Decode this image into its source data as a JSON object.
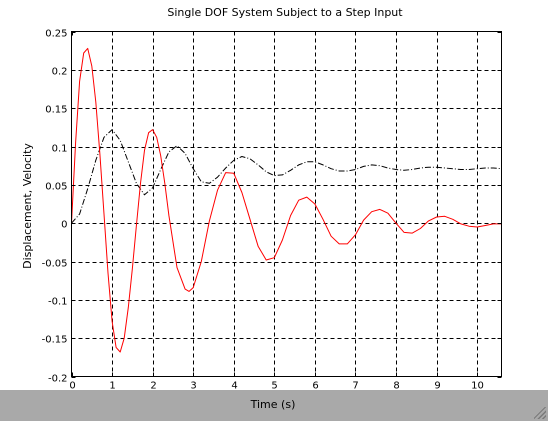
{
  "chart_data": {
    "type": "line",
    "title": "Single DOF System Subject to a Step Input",
    "xlabel": "Time (s)",
    "ylabel": "Displacement, Velocity",
    "xlim": [
      0,
      10.6
    ],
    "ylim": [
      -0.2,
      0.25
    ],
    "xticks": [
      0,
      1,
      2,
      3,
      4,
      5,
      6,
      7,
      8,
      9,
      10
    ],
    "yticks": [
      -0.2,
      -0.15,
      -0.1,
      -0.05,
      0,
      0.05,
      0.1,
      0.15,
      0.2,
      0.25
    ],
    "xticklabels": [
      "0",
      "1",
      "2",
      "3",
      "4",
      "5",
      "6",
      "7",
      "8",
      "9",
      "10"
    ],
    "yticklabels": [
      "-0.2",
      "-0.15",
      "-0.1",
      "-0.05",
      "0",
      "0.05",
      "0.1",
      "0.15",
      "0.2",
      "0.25"
    ],
    "grid": true,
    "series": [
      {
        "color": "#000000",
        "dash": "dashdot",
        "x": [
          0,
          0.2,
          0.4,
          0.6,
          0.8,
          1.0,
          1.2,
          1.4,
          1.6,
          1.8,
          2.0,
          2.2,
          2.4,
          2.6,
          2.8,
          3.0,
          3.2,
          3.4,
          3.6,
          3.8,
          4.0,
          4.2,
          4.4,
          4.6,
          4.8,
          5.0,
          5.2,
          5.4,
          5.6,
          5.8,
          6.0,
          6.2,
          6.4,
          6.6,
          6.8,
          7.0,
          7.2,
          7.4,
          7.6,
          7.8,
          8.0,
          8.2,
          8.4,
          8.6,
          8.8,
          9.0,
          9.2,
          9.4,
          9.6,
          9.8,
          10.0,
          10.2,
          10.4,
          10.6
        ],
        "y": [
          0.0,
          0.012,
          0.045,
          0.082,
          0.112,
          0.122,
          0.108,
          0.08,
          0.052,
          0.037,
          0.046,
          0.07,
          0.093,
          0.101,
          0.091,
          0.071,
          0.054,
          0.052,
          0.06,
          0.072,
          0.082,
          0.087,
          0.084,
          0.076,
          0.067,
          0.062,
          0.063,
          0.069,
          0.076,
          0.08,
          0.08,
          0.076,
          0.071,
          0.068,
          0.068,
          0.07,
          0.074,
          0.076,
          0.075,
          0.072,
          0.07,
          0.069,
          0.07,
          0.072,
          0.073,
          0.073,
          0.072,
          0.071,
          0.07,
          0.07,
          0.071,
          0.072,
          0.072,
          0.071
        ]
      },
      {
        "color": "#ff0000",
        "dash": "solid",
        "x": [
          0,
          0.1,
          0.2,
          0.3,
          0.4,
          0.5,
          0.6,
          0.7,
          0.8,
          0.9,
          1.0,
          1.1,
          1.2,
          1.3,
          1.4,
          1.5,
          1.6,
          1.7,
          1.8,
          1.9,
          2.0,
          2.1,
          2.2,
          2.3,
          2.4,
          2.6,
          2.8,
          2.9,
          3.0,
          3.2,
          3.4,
          3.6,
          3.8,
          4.0,
          4.2,
          4.4,
          4.6,
          4.8,
          5.0,
          5.2,
          5.4,
          5.6,
          5.8,
          6.0,
          6.2,
          6.4,
          6.6,
          6.8,
          7.0,
          7.2,
          7.4,
          7.6,
          7.8,
          8.0,
          8.2,
          8.4,
          8.6,
          8.8,
          9.0,
          9.2,
          9.4,
          9.6,
          9.8,
          10.0,
          10.2,
          10.4,
          10.6
        ],
        "y": [
          0.0,
          0.105,
          0.185,
          0.222,
          0.228,
          0.205,
          0.158,
          0.09,
          0.012,
          -0.065,
          -0.128,
          -0.162,
          -0.168,
          -0.15,
          -0.11,
          -0.06,
          -0.003,
          0.052,
          0.095,
          0.118,
          0.122,
          0.112,
          0.088,
          0.052,
          0.01,
          -0.058,
          -0.086,
          -0.089,
          -0.084,
          -0.05,
          0.003,
          0.043,
          0.066,
          0.065,
          0.04,
          0.005,
          -0.03,
          -0.048,
          -0.045,
          -0.022,
          0.01,
          0.03,
          0.034,
          0.025,
          0.005,
          -0.017,
          -0.027,
          -0.027,
          -0.015,
          0.004,
          0.015,
          0.018,
          0.013,
          0.0,
          -0.012,
          -0.013,
          -0.007,
          0.003,
          0.008,
          0.009,
          0.005,
          -0.001,
          -0.004,
          -0.005,
          -0.003,
          -0.001,
          -0.001
        ]
      }
    ]
  }
}
